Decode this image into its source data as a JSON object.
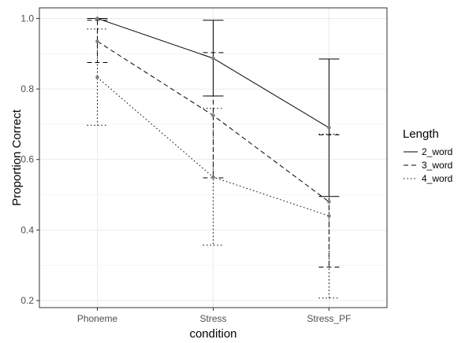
{
  "chart_data": {
    "type": "line",
    "title": "",
    "xlabel": "condition",
    "ylabel": "Proportion Correct",
    "categories": [
      "Phoneme",
      "Stress",
      "Stress_PF"
    ],
    "yticks": [
      "0.2",
      "0.4",
      "0.6",
      "0.8",
      "1.0"
    ],
    "ylim": [
      0.18,
      1.03
    ],
    "grid": true,
    "legend": {
      "title": "Length",
      "position": "right"
    },
    "series": [
      {
        "name": "2_word",
        "linestyle": "solid",
        "values": [
          1.0,
          0.887,
          0.69
        ],
        "error_low": [
          1.0,
          0.78,
          0.495
        ],
        "error_high": [
          1.0,
          0.995,
          0.885
        ]
      },
      {
        "name": "3_word",
        "linestyle": "dashed",
        "values": [
          0.935,
          0.725,
          0.48
        ],
        "error_low": [
          0.875,
          0.548,
          0.295
        ],
        "error_high": [
          0.995,
          0.903,
          0.67
        ]
      },
      {
        "name": "4_word",
        "linestyle": "dotted",
        "values": [
          0.833,
          0.55,
          0.44
        ],
        "error_low": [
          0.697,
          0.357,
          0.207
        ],
        "error_high": [
          0.97,
          0.745,
          0.672
        ]
      }
    ],
    "colors": {
      "line": "#000000",
      "point": "#7f7f7f",
      "grid": "#ebebeb",
      "panel_border": "#333333"
    }
  }
}
